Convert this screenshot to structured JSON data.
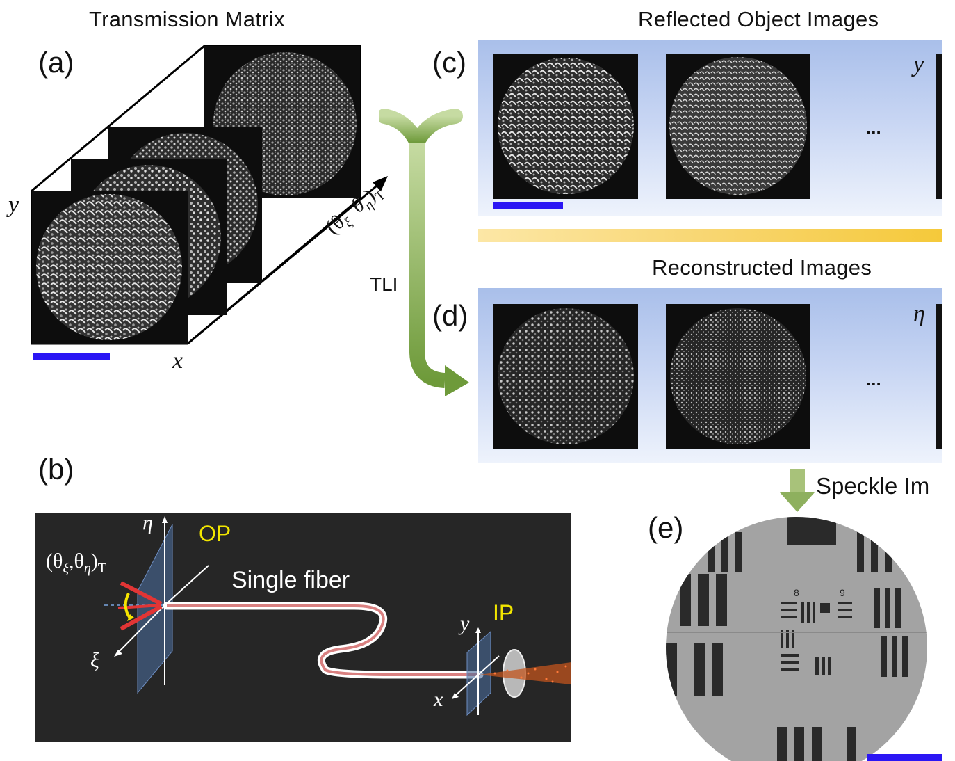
{
  "titles": {
    "transmission_matrix": "Transmission Matrix",
    "reflected_object_images": "Reflected Object Images",
    "reconstructed_images": "Reconstructed Images",
    "speckle": "Speckle Im"
  },
  "panel_labels": {
    "a": "(a)",
    "b": "(b)",
    "c": "(c)",
    "d": "(d)",
    "e": "(e)"
  },
  "axes": {
    "a_y": "y",
    "a_x": "x",
    "a_theta": "(θ",
    "a_xi": "ξ",
    "a_theta2": "θ",
    "a_eta": "η",
    "a_close": ")",
    "a_T": "T",
    "c_y": "y",
    "d_eta": "η",
    "b_eta": "η",
    "b_xi": "ξ",
    "b_y": "y",
    "b_x": "x",
    "b_angle": "(θ",
    "b_angle_xi": "ξ",
    "b_angle_sep": ",θ",
    "b_angle_eta": "η",
    "b_angle_close": ")",
    "b_angle_T": "T"
  },
  "arrow_label": "TLI",
  "ellipsis": "...",
  "fiber": {
    "op": "OP",
    "ip": "IP",
    "label": "Single fiber"
  },
  "resolution_target": {
    "group_8": "8",
    "group_9": "9"
  },
  "colors": {
    "scalebar": "#2b16f4",
    "op_ip_text": "#f2e600",
    "tli_arrow_top": "#c6dba2",
    "tli_arrow_bottom": "#6e9a3a",
    "gold_bar": "#f5cc45",
    "panel_gradient_top": "#a9bfea"
  }
}
